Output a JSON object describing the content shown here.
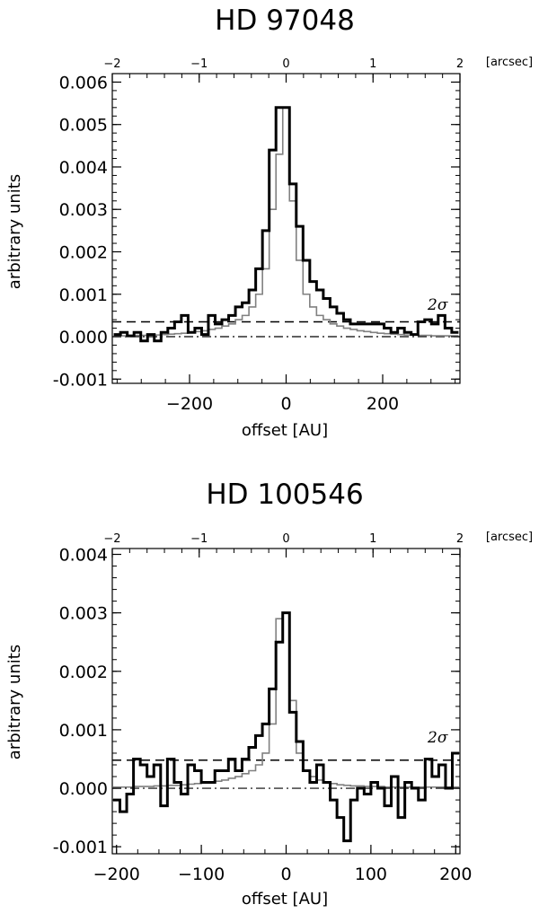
{
  "chart_data": [
    {
      "type": "line",
      "title": "HD 97048",
      "xlabel": "offset [AU]",
      "ylabel": "arbitrary units",
      "xlim": [
        -360,
        360
      ],
      "ylim": [
        -0.0011,
        0.0062
      ],
      "xticks": [
        -200,
        0,
        200
      ],
      "yticks": [
        -0.001,
        0.0,
        0.001,
        0.002,
        0.003,
        0.004,
        0.005,
        0.006
      ],
      "ytick_labels": [
        "-0.001",
        "0.000",
        "0.001",
        "0.002",
        "0.003",
        "0.004",
        "0.005",
        "0.006"
      ],
      "top_axis": {
        "unit": "[arcsec]",
        "xlim": [
          -2,
          2
        ],
        "ticks": [
          -2,
          -1,
          0,
          1,
          2
        ]
      },
      "sigma_label": "2σ",
      "sigma_level": 0.00035,
      "zero_level": 0.0,
      "series": [
        {
          "color": "#000000",
          "style": "thick-steps",
          "x": [
            -350,
            -336,
            -322,
            -308,
            -294,
            -280,
            -266,
            -252,
            -238,
            -224,
            -210,
            -196,
            -182,
            -168,
            -154,
            -140,
            -126,
            -112,
            -98,
            -84,
            -70,
            -56,
            -42,
            -28,
            -14,
            0,
            14,
            28,
            42,
            56,
            70,
            84,
            98,
            112,
            126,
            140,
            154,
            168,
            182,
            196,
            210,
            224,
            238,
            252,
            266,
            280,
            294,
            308,
            322,
            336,
            350
          ],
          "y": [
            5e-05,
            0.0001,
            2e-05,
            0.0001,
            -0.0001,
            5e-05,
            -0.0001,
            0.0001,
            0.0002,
            0.00035,
            0.0005,
            0.0001,
            0.0002,
            5e-05,
            0.0005,
            0.0003,
            0.0004,
            0.0005,
            0.0007,
            0.0008,
            0.0011,
            0.0016,
            0.0025,
            0.0044,
            0.0054,
            0.0054,
            0.0036,
            0.0026,
            0.0018,
            0.0013,
            0.0011,
            0.0009,
            0.0007,
            0.00055,
            0.0004,
            0.0003,
            0.0003,
            0.0003,
            0.0003,
            0.0003,
            0.0002,
            0.0001,
            0.0002,
            0.0001,
            5e-05,
            0.00035,
            0.0004,
            0.0003,
            0.0005,
            0.0002,
            0.0001
          ]
        },
        {
          "color": "#808080",
          "style": "thin-steps",
          "x": [
            -350,
            -336,
            -322,
            -308,
            -294,
            -280,
            -266,
            -252,
            -238,
            -224,
            -210,
            -196,
            -182,
            -168,
            -154,
            -140,
            -126,
            -112,
            -98,
            -84,
            -70,
            -56,
            -42,
            -28,
            -14,
            0,
            14,
            28,
            42,
            56,
            70,
            84,
            98,
            112,
            126,
            140,
            154,
            168,
            182,
            196,
            210,
            224,
            238,
            252,
            266,
            280,
            294,
            308,
            322,
            336,
            350
          ],
          "y": [
            2e-05,
            2e-05,
            2e-05,
            3e-05,
            3e-05,
            4e-05,
            4e-05,
            5e-05,
            6e-05,
            7e-05,
            8e-05,
            0.0001,
            0.00012,
            0.00014,
            0.00017,
            0.0002,
            0.00025,
            0.0003,
            0.0004,
            0.0005,
            0.0007,
            0.001,
            0.0016,
            0.003,
            0.0043,
            0.0054,
            0.0032,
            0.0018,
            0.001,
            0.0007,
            0.0005,
            0.0004,
            0.0003,
            0.00025,
            0.0002,
            0.00017,
            0.00014,
            0.00012,
            0.0001,
            8e-05,
            7e-05,
            6e-05,
            5e-05,
            4e-05,
            4e-05,
            3e-05,
            3e-05,
            2e-05,
            2e-05,
            2e-05,
            2e-05
          ]
        }
      ]
    },
    {
      "type": "line",
      "title": "HD 100546",
      "xlabel": "offset [AU]",
      "ylabel": "arbitrary units",
      "xlim": [
        -205,
        205
      ],
      "ylim": [
        -0.00112,
        0.0041
      ],
      "xticks": [
        -200,
        -100,
        0,
        100,
        200
      ],
      "yticks": [
        -0.001,
        0.0,
        0.001,
        0.002,
        0.003,
        0.004
      ],
      "ytick_labels": [
        "-0.001",
        "0.000",
        "0.001",
        "0.002",
        "0.003",
        "0.004"
      ],
      "top_axis": {
        "unit": "[arcsec]",
        "xlim": [
          -2,
          2
        ],
        "ticks": [
          -2,
          -1,
          0,
          1,
          2
        ]
      },
      "sigma_label": "2σ",
      "sigma_level": 0.00048,
      "zero_level": 0.0,
      "series": [
        {
          "color": "#000000",
          "style": "thick-steps",
          "x": [
            -200,
            -192,
            -184,
            -176,
            -168,
            -160,
            -152,
            -144,
            -136,
            -128,
            -120,
            -112,
            -104,
            -96,
            -88,
            -80,
            -72,
            -64,
            -56,
            -48,
            -40,
            -32,
            -24,
            -16,
            -8,
            0,
            8,
            16,
            24,
            32,
            40,
            48,
            56,
            64,
            72,
            80,
            88,
            96,
            104,
            112,
            120,
            128,
            136,
            144,
            152,
            160,
            168,
            176,
            184,
            192,
            200
          ],
          "y": [
            -0.0002,
            -0.0004,
            -0.0001,
            0.0005,
            0.0004,
            0.0002,
            0.0004,
            -0.0003,
            0.0005,
            0.0001,
            -0.0001,
            0.0004,
            0.0003,
            0.0001,
            0.0001,
            0.0003,
            0.0003,
            0.0005,
            0.0003,
            0.0005,
            0.0007,
            0.0009,
            0.0011,
            0.0017,
            0.0025,
            0.003,
            0.0013,
            0.0008,
            0.0003,
            0.0001,
            0.0004,
            0.0001,
            -0.0002,
            -0.0005,
            -0.0009,
            -0.0002,
            0.0,
            -0.0001,
            0.0001,
            0.0,
            -0.0003,
            0.0002,
            -0.0005,
            0.0001,
            0.0,
            -0.0002,
            0.0005,
            0.0002,
            0.0004,
            0.0,
            0.0006
          ]
        },
        {
          "color": "#808080",
          "style": "thin-steps",
          "x": [
            -200,
            -192,
            -184,
            -176,
            -168,
            -160,
            -152,
            -144,
            -136,
            -128,
            -120,
            -112,
            -104,
            -96,
            -88,
            -80,
            -72,
            -64,
            -56,
            -48,
            -40,
            -32,
            -24,
            -16,
            -8,
            0,
            8,
            16,
            24,
            32,
            40,
            48,
            56,
            64,
            72,
            80,
            88,
            96,
            104,
            112,
            120,
            128,
            136,
            144,
            152,
            160,
            168,
            176,
            184,
            192,
            200
          ],
          "y": [
            2e-05,
            2e-05,
            2e-05,
            3e-05,
            3e-05,
            3e-05,
            4e-05,
            4e-05,
            5e-05,
            5e-05,
            6e-05,
            7e-05,
            8e-05,
            9e-05,
            0.0001,
            0.00012,
            0.00014,
            0.00017,
            0.0002,
            0.00025,
            0.0003,
            0.0004,
            0.0006,
            0.0011,
            0.0029,
            0.003,
            0.0015,
            0.0006,
            0.0003,
            0.0002,
            0.00014,
            0.0001,
            8e-05,
            6e-05,
            5e-05,
            4e-05,
            4e-05,
            3e-05,
            3e-05,
            3e-05,
            2e-05,
            2e-05,
            2e-05,
            2e-05,
            2e-05,
            2e-05,
            2e-05,
            2e-05,
            2e-05,
            2e-05,
            2e-05
          ]
        }
      ]
    }
  ]
}
